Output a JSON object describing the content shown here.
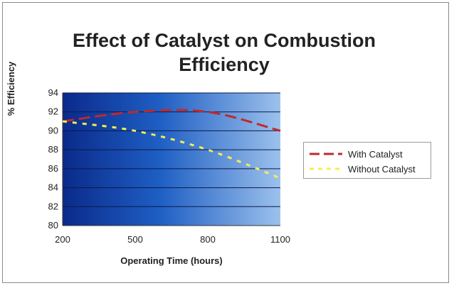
{
  "chart_data": {
    "type": "line",
    "title": "Effect of Catalyst on Combustion Efficiency",
    "xlabel": "Operating Time (hours)",
    "ylabel": "% Efficiency",
    "x": [
      200,
      500,
      800,
      1100
    ],
    "xlim": [
      200,
      1100
    ],
    "ylim": [
      80,
      94
    ],
    "y_ticks": [
      80,
      82,
      84,
      86,
      88,
      90,
      92,
      94
    ],
    "x_ticks": [
      200,
      500,
      800,
      1100
    ],
    "grid": true,
    "legend_position": "right",
    "series": [
      {
        "name": "With Catalyst",
        "values": [
          91,
          92,
          92,
          90
        ],
        "color": "#c0282d",
        "dash": "long-dash"
      },
      {
        "name": "Without Catalyst",
        "values": [
          91,
          90,
          88,
          85
        ],
        "color": "#f4ee50",
        "dash": "short-dash"
      }
    ]
  }
}
